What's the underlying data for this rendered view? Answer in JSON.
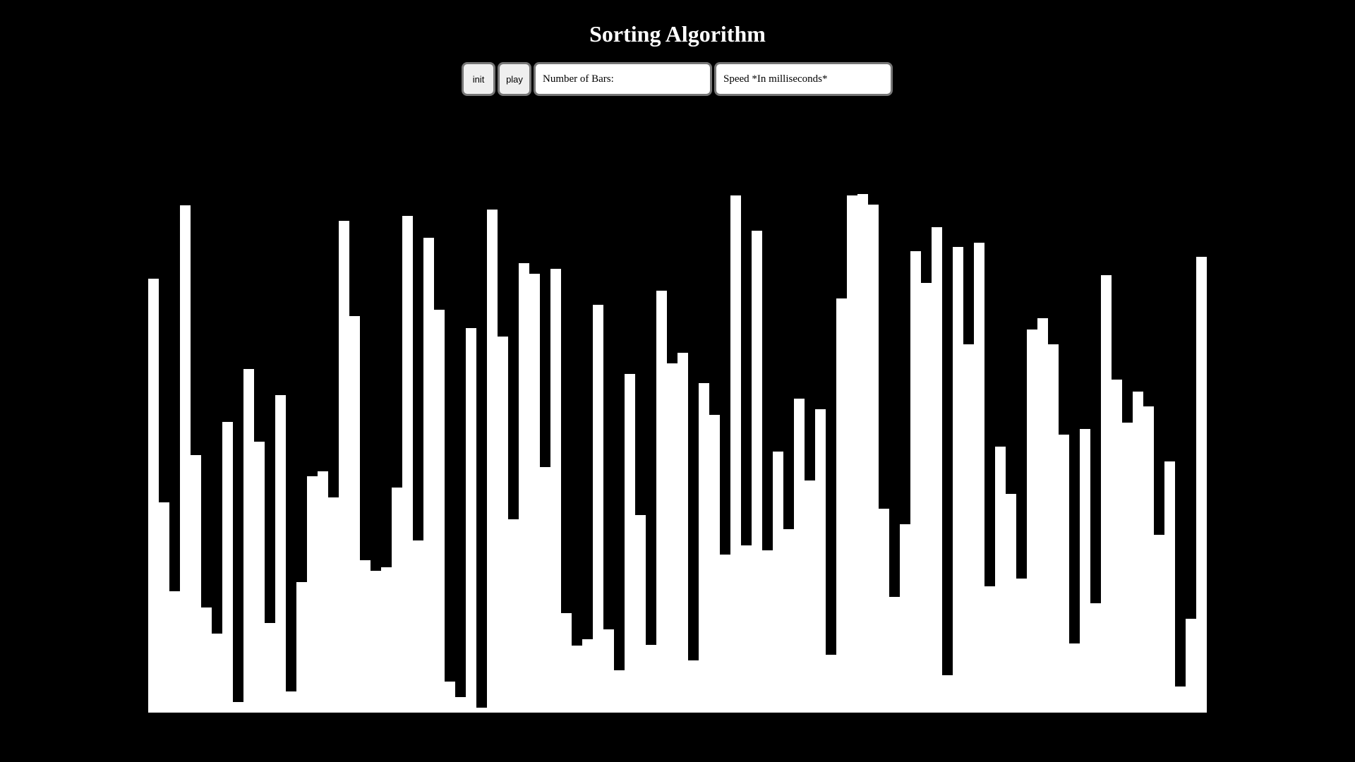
{
  "header": {
    "title": "Sorting Algorithm"
  },
  "controls": {
    "init_label": "init",
    "play_label": "play",
    "bars_placeholder": "Number of Bars:",
    "speed_placeholder": "Speed *In milliseconds*"
  },
  "colors": {
    "background": "#000000",
    "bar": "#ffffff",
    "title": "#ffffff"
  },
  "chart_data": {
    "type": "bar",
    "max_value": 750,
    "values": [
      615,
      298,
      172,
      719,
      365,
      149,
      112,
      412,
      15,
      487,
      384,
      127,
      450,
      30,
      185,
      335,
      342,
      305,
      697,
      562,
      216,
      201,
      206,
      319,
      704,
      244,
      673,
      571,
      44,
      22,
      545,
      7,
      713,
      533,
      274,
      637,
      622,
      348,
      629,
      141,
      95,
      104,
      578,
      118,
      60,
      480,
      280,
      96,
      598,
      495,
      510,
      74,
      467,
      422,
      224,
      733,
      237,
      683,
      230,
      370,
      260,
      445,
      329,
      430,
      82,
      587,
      733,
      735,
      720,
      289,
      164,
      267,
      654,
      609,
      688,
      53,
      660,
      522,
      666,
      179,
      377,
      310,
      190,
      543,
      559,
      522,
      394,
      98,
      402,
      155,
      620,
      472,
      411,
      455,
      434,
      252,
      356,
      37,
      133,
      646
    ]
  }
}
